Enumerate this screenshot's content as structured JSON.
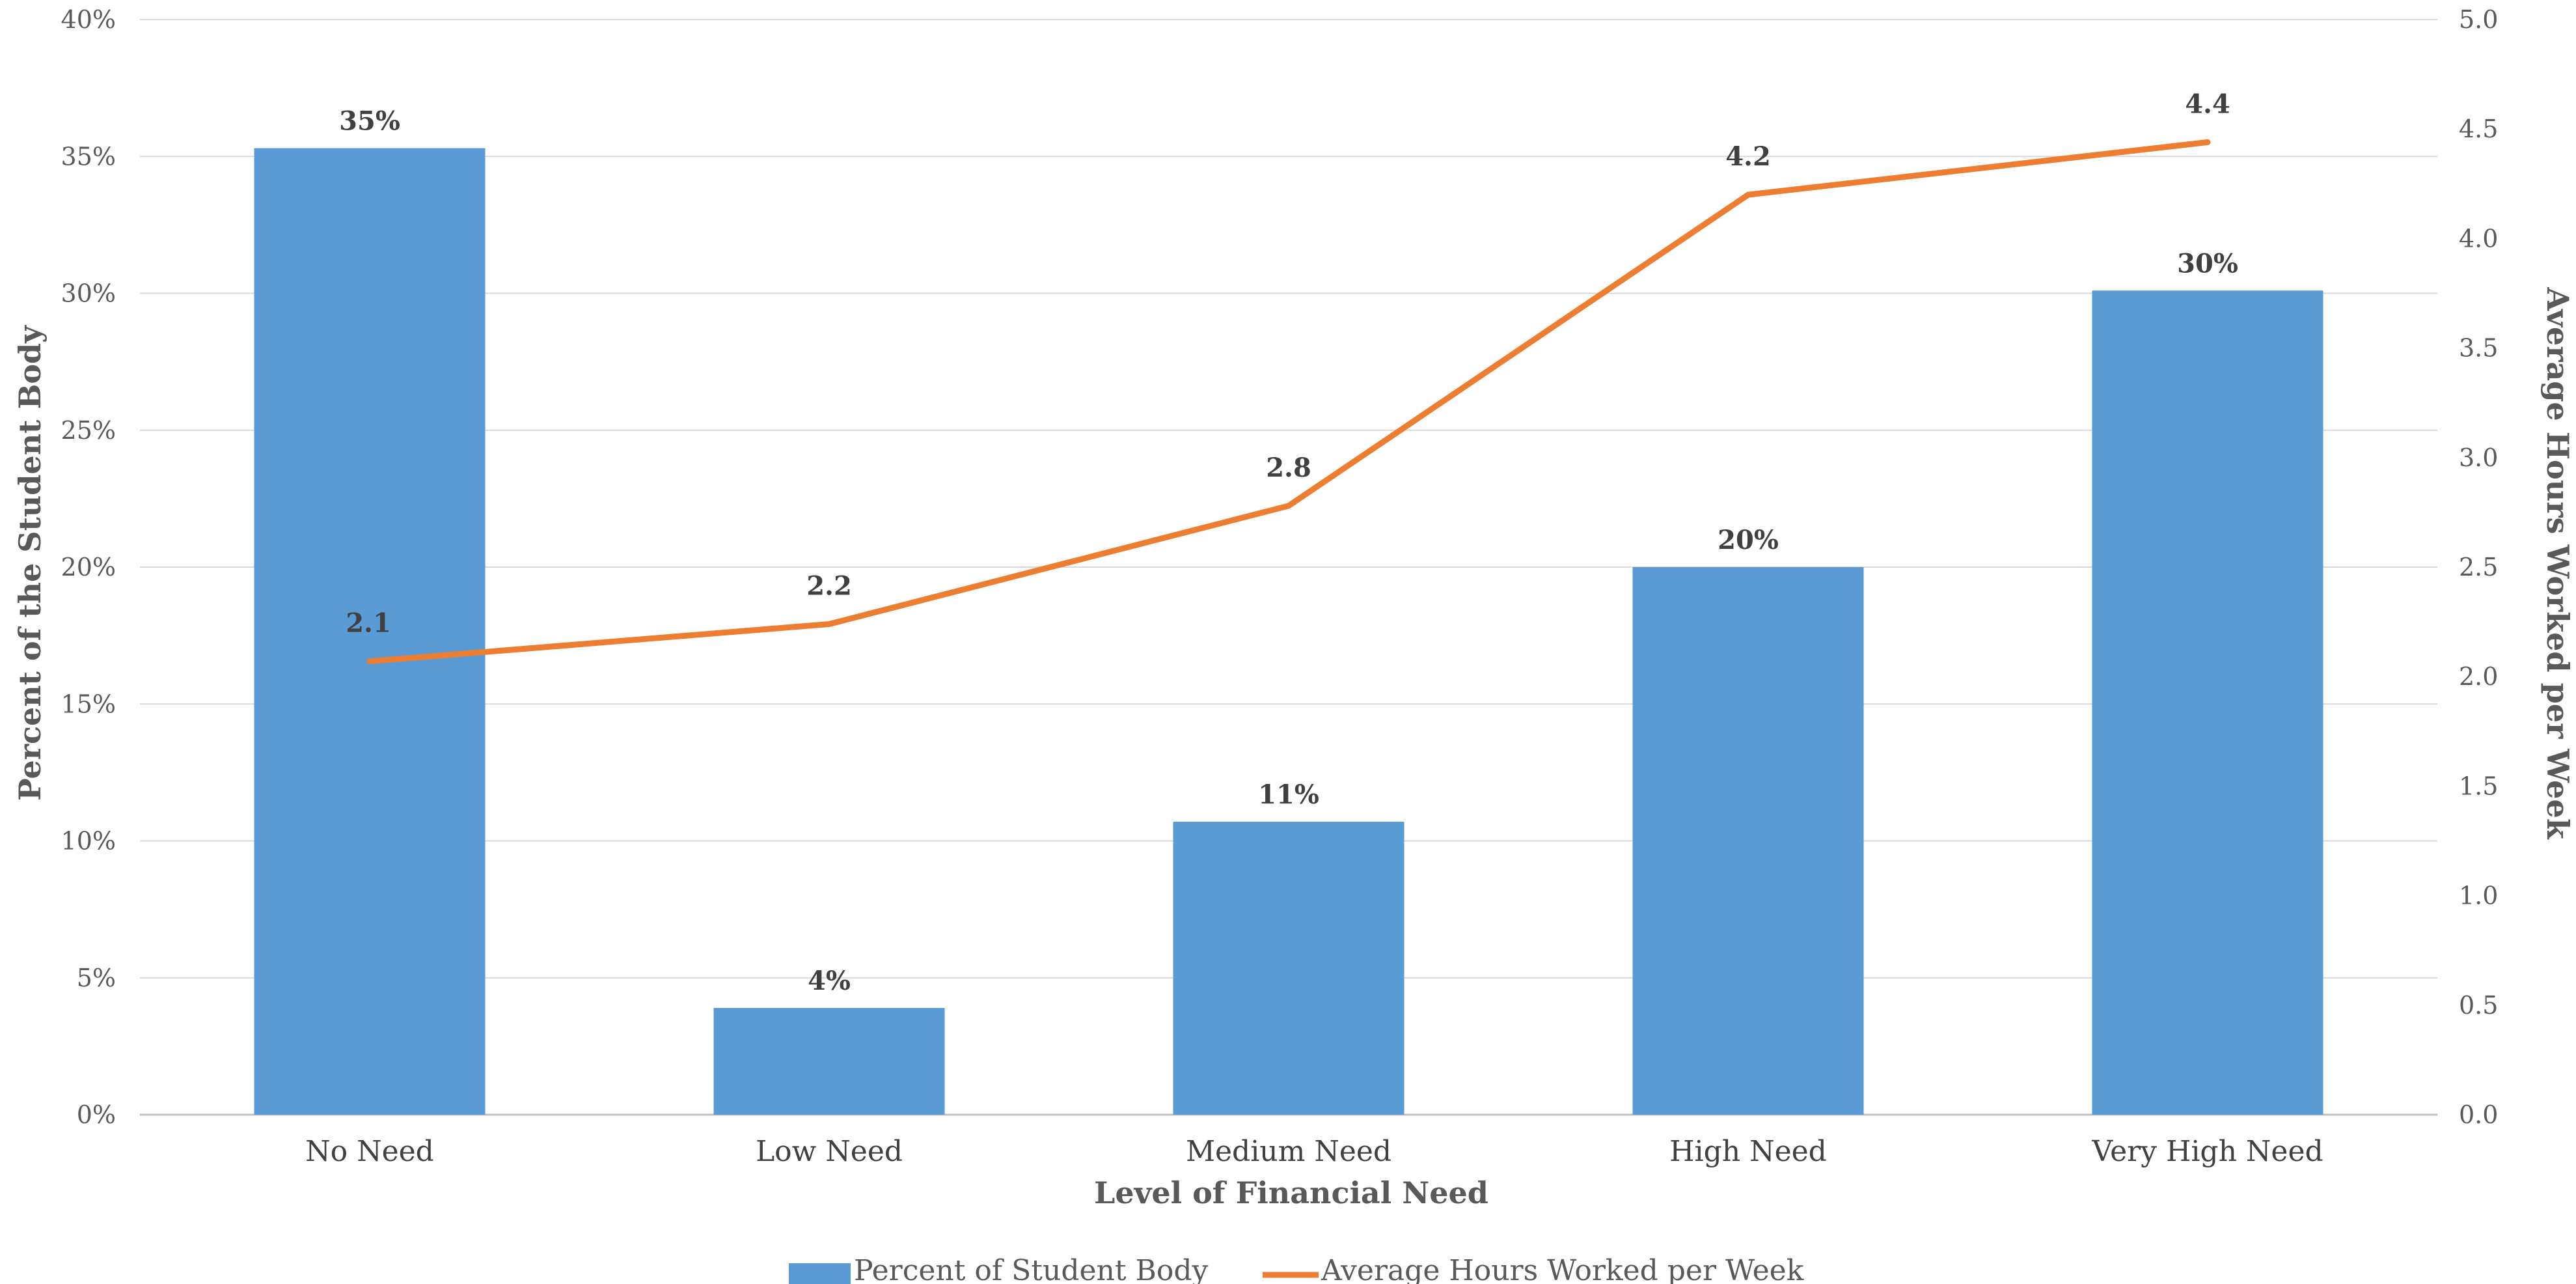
{
  "chart_data": {
    "type": "bar",
    "categories": [
      "No Need",
      "Low Need",
      "Medium Need",
      "High Need",
      "Very High Need"
    ],
    "xlabel": "Level of Financial Need",
    "ylabel": "Percent of the Student Body",
    "y2label": "Average Hours Worked per Week",
    "ylim": [
      0,
      40
    ],
    "y2lim": [
      0,
      5
    ],
    "y_ticks": [
      "0%",
      "5%",
      "10%",
      "15%",
      "20%",
      "25%",
      "30%",
      "35%",
      "40%"
    ],
    "y2_ticks": [
      "0.0",
      "0.5",
      "1.0",
      "1.5",
      "2.0",
      "2.5",
      "3.0",
      "3.5",
      "4.0",
      "4.5",
      "5.0"
    ],
    "grid": true,
    "legend_position": "bottom",
    "series": [
      {
        "name": "Percent of Student Body",
        "type": "bar",
        "axis": "left",
        "color": "#5B9BD5",
        "values": [
          35.3,
          3.9,
          10.7,
          20.0,
          30.1
        ],
        "labels": [
          "35%",
          "4%",
          "11%",
          "20%",
          "30%"
        ]
      },
      {
        "name": "Average Hours Worked per Week",
        "type": "line",
        "axis": "right",
        "color": "#ED7D31",
        "values": [
          2.07,
          2.24,
          2.78,
          4.2,
          4.44
        ],
        "labels": [
          "2.1",
          "2.2",
          "2.8",
          "4.2",
          "4.4"
        ]
      }
    ]
  }
}
